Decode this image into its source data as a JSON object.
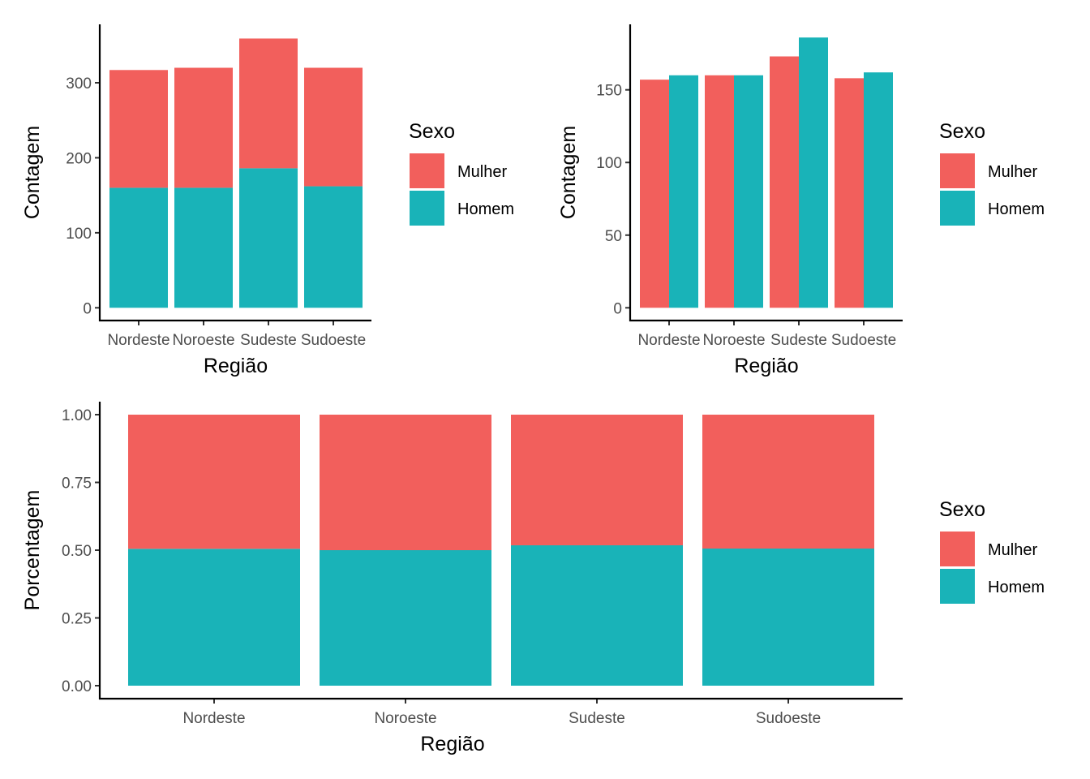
{
  "colors": {
    "Mulher": "#F25F5C",
    "Homem": "#19B3B8"
  },
  "chart_data": [
    {
      "id": "stacked-count",
      "type": "bar",
      "mode": "stacked",
      "title": "",
      "xlabel": "Região",
      "ylabel": "Contagem",
      "categories": [
        "Nordeste",
        "Noroeste",
        "Sudeste",
        "Sudoeste"
      ],
      "series": [
        {
          "name": "Mulher",
          "values": [
            157,
            160,
            173,
            158
          ]
        },
        {
          "name": "Homem",
          "values": [
            160,
            160,
            186,
            162
          ]
        }
      ],
      "ylim": [
        0,
        375
      ],
      "yticks": [
        0,
        100,
        200,
        300
      ],
      "ytick_labels": [
        "0",
        "100",
        "200",
        "300"
      ],
      "grid": false,
      "legend": {
        "title": "Sexo",
        "entries": [
          "Mulher",
          "Homem"
        ],
        "position": "right"
      }
    },
    {
      "id": "dodged-count",
      "type": "bar",
      "mode": "dodge",
      "title": "",
      "xlabel": "Região",
      "ylabel": "Contagem",
      "categories": [
        "Nordeste",
        "Noroeste",
        "Sudeste",
        "Sudoeste"
      ],
      "series": [
        {
          "name": "Mulher",
          "values": [
            157,
            160,
            173,
            158
          ]
        },
        {
          "name": "Homem",
          "values": [
            160,
            160,
            186,
            162
          ]
        }
      ],
      "ylim": [
        0,
        195
      ],
      "yticks": [
        0,
        50,
        100,
        150
      ],
      "ytick_labels": [
        "0",
        "50",
        "100",
        "150"
      ],
      "grid": false,
      "legend": {
        "title": "Sexo",
        "entries": [
          "Mulher",
          "Homem"
        ],
        "position": "right"
      }
    },
    {
      "id": "fill-proportion",
      "type": "bar",
      "mode": "fill",
      "title": "",
      "xlabel": "Região",
      "ylabel": "Porcentagem",
      "categories": [
        "Nordeste",
        "Noroeste",
        "Sudeste",
        "Sudoeste"
      ],
      "series": [
        {
          "name": "Mulher",
          "values": [
            0.495,
            0.5,
            0.482,
            0.494
          ]
        },
        {
          "name": "Homem",
          "values": [
            0.505,
            0.5,
            0.518,
            0.506
          ]
        }
      ],
      "ylim": [
        -0.045,
        1.05
      ],
      "yticks": [
        0,
        0.25,
        0.5,
        0.75,
        1.0
      ],
      "ytick_labels": [
        "0.00",
        "0.25",
        "0.50",
        "0.75",
        "1.00"
      ],
      "grid": false,
      "legend": {
        "title": "Sexo",
        "entries": [
          "Mulher",
          "Homem"
        ],
        "position": "right"
      }
    }
  ]
}
